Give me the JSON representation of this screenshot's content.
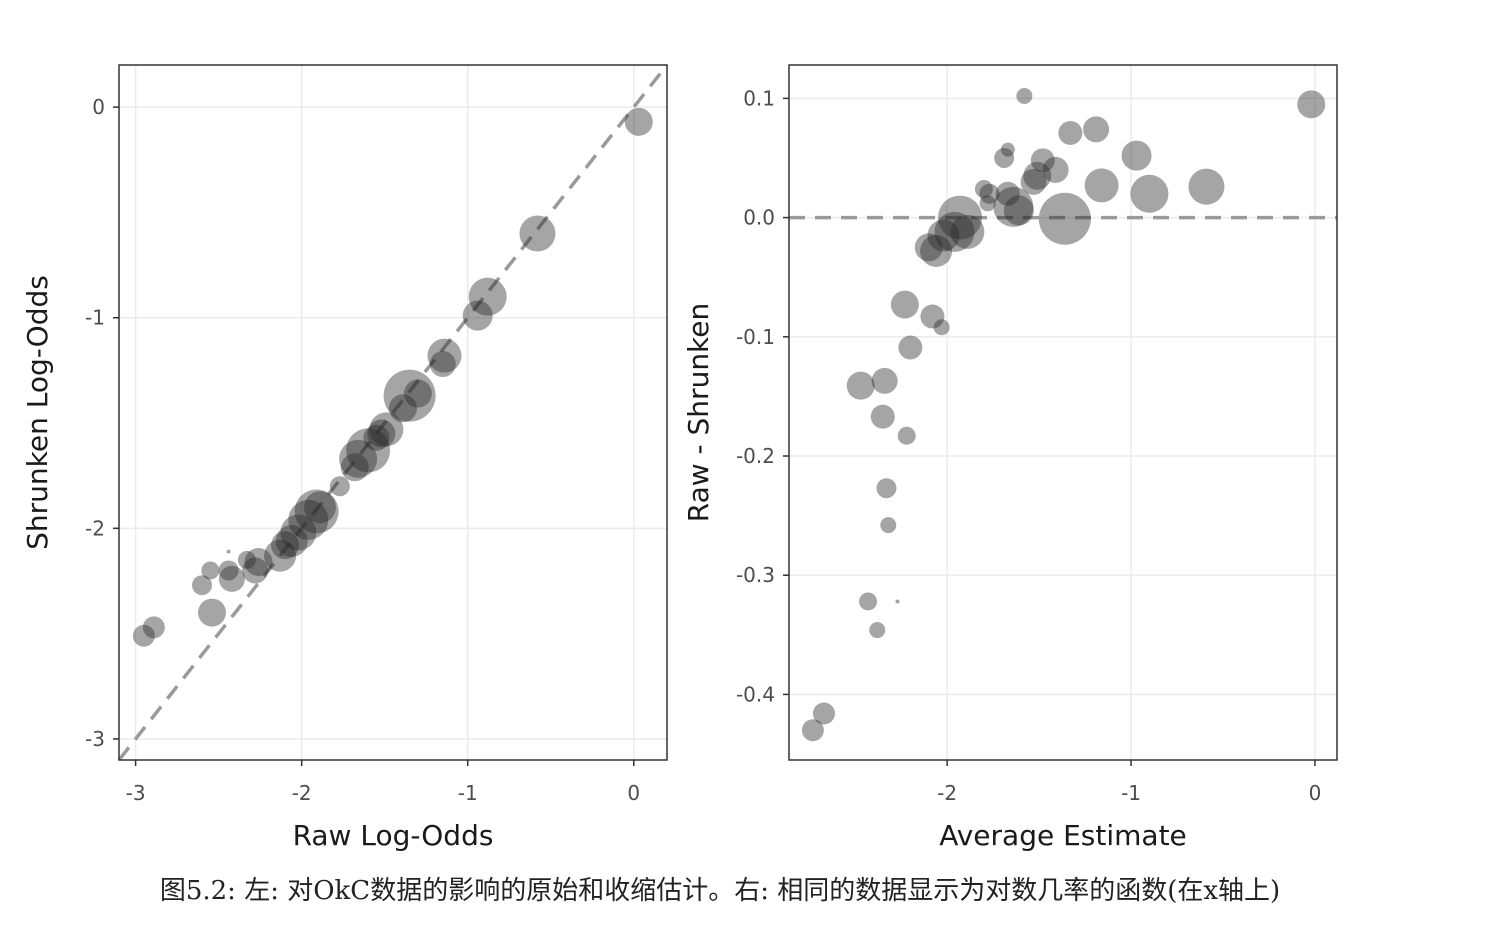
{
  "chart_data": [
    {
      "type": "scatter",
      "xlabel": "Raw Log-Odds",
      "ylabel": "Shrunken Log-Odds",
      "xlim": [
        -3.1,
        0.2
      ],
      "ylim": [
        -3.1,
        0.2
      ],
      "xticks": [
        -3,
        -2,
        -1,
        0
      ],
      "yticks": [
        0,
        -1,
        -2,
        -3
      ],
      "reference_line": "dashed y = x",
      "grid": true,
      "points": [
        {
          "x": 0.03,
          "y": -0.07,
          "s": 14
        },
        {
          "x": -0.58,
          "y": -0.6,
          "s": 18
        },
        {
          "x": -0.88,
          "y": -0.9,
          "s": 19
        },
        {
          "x": -0.94,
          "y": -0.99,
          "s": 15
        },
        {
          "x": -1.14,
          "y": -1.18,
          "s": 17
        },
        {
          "x": -1.15,
          "y": -1.22,
          "s": 13
        },
        {
          "x": -1.35,
          "y": -1.37,
          "s": 26
        },
        {
          "x": -1.3,
          "y": -1.36,
          "s": 14
        },
        {
          "x": -1.39,
          "y": -1.43,
          "s": 14
        },
        {
          "x": -1.49,
          "y": -1.53,
          "s": 17
        },
        {
          "x": -1.52,
          "y": -1.55,
          "s": 14
        },
        {
          "x": -1.55,
          "y": -1.57,
          "s": 13
        },
        {
          "x": -1.6,
          "y": -1.63,
          "s": 22
        },
        {
          "x": -1.66,
          "y": -1.67,
          "s": 19
        },
        {
          "x": -1.68,
          "y": -1.71,
          "s": 14
        },
        {
          "x": -1.77,
          "y": -1.8,
          "s": 10
        },
        {
          "x": -1.89,
          "y": -1.9,
          "s": 16
        },
        {
          "x": -1.91,
          "y": -1.92,
          "s": 22
        },
        {
          "x": -1.96,
          "y": -1.96,
          "s": 20
        },
        {
          "x": -2.02,
          "y": -2.02,
          "s": 18
        },
        {
          "x": -2.06,
          "y": -2.06,
          "s": 16
        },
        {
          "x": -2.1,
          "y": -2.08,
          "s": 14
        },
        {
          "x": -2.13,
          "y": -2.13,
          "s": 16
        },
        {
          "x": -2.26,
          "y": -2.16,
          "s": 14
        },
        {
          "x": -2.28,
          "y": -2.2,
          "s": 13
        },
        {
          "x": -2.33,
          "y": -2.15,
          "s": 9
        },
        {
          "x": -2.42,
          "y": -2.24,
          "s": 13
        },
        {
          "x": -2.44,
          "y": -2.2,
          "s": 10
        },
        {
          "x": -2.44,
          "y": -2.11,
          "s": 2
        },
        {
          "x": -2.54,
          "y": -2.4,
          "s": 14
        },
        {
          "x": -2.55,
          "y": -2.2,
          "s": 9
        },
        {
          "x": -2.6,
          "y": -2.27,
          "s": 10
        },
        {
          "x": -2.89,
          "y": -2.47,
          "s": 11
        },
        {
          "x": -2.95,
          "y": -2.51,
          "s": 11
        }
      ]
    },
    {
      "type": "scatter",
      "xlabel": "Average Estimate",
      "ylabel": "Raw - Shrunken",
      "xlim": [
        -2.86,
        0.12
      ],
      "ylim": [
        -0.455,
        0.128
      ],
      "xticks": [
        -2,
        -1,
        0
      ],
      "yticks": [
        0.1,
        0.0,
        -0.1,
        -0.2,
        -0.3,
        -0.4
      ],
      "reference_line": "dashed y = 0",
      "grid": true,
      "points": [
        {
          "x": -0.02,
          "y": 0.095,
          "s": 14
        },
        {
          "x": -0.59,
          "y": 0.026,
          "s": 18
        },
        {
          "x": -0.9,
          "y": 0.02,
          "s": 19
        },
        {
          "x": -0.97,
          "y": 0.052,
          "s": 15
        },
        {
          "x": -1.16,
          "y": 0.027,
          "s": 17
        },
        {
          "x": -1.19,
          "y": 0.074,
          "s": 13
        },
        {
          "x": -1.36,
          "y": -0.001,
          "s": 26
        },
        {
          "x": -1.33,
          "y": 0.071,
          "s": 12
        },
        {
          "x": -1.41,
          "y": 0.04,
          "s": 13
        },
        {
          "x": -1.48,
          "y": 0.048,
          "s": 12
        },
        {
          "x": -1.51,
          "y": 0.035,
          "s": 14
        },
        {
          "x": -1.53,
          "y": 0.03,
          "s": 13
        },
        {
          "x": -1.58,
          "y": 0.102,
          "s": 8
        },
        {
          "x": -1.61,
          "y": 0.006,
          "s": 15
        },
        {
          "x": -1.64,
          "y": 0.009,
          "s": 20
        },
        {
          "x": -1.67,
          "y": 0.02,
          "s": 12
        },
        {
          "x": -1.69,
          "y": 0.05,
          "s": 10
        },
        {
          "x": -1.67,
          "y": 0.057,
          "s": 7
        },
        {
          "x": -1.77,
          "y": 0.02,
          "s": 10
        },
        {
          "x": -1.8,
          "y": 0.024,
          "s": 9
        },
        {
          "x": -1.78,
          "y": 0.012,
          "s": 8
        },
        {
          "x": -1.89,
          "y": -0.012,
          "s": 17
        },
        {
          "x": -1.93,
          "y": 0.0,
          "s": 22
        },
        {
          "x": -1.96,
          "y": -0.012,
          "s": 20
        },
        {
          "x": -2.02,
          "y": -0.015,
          "s": 16
        },
        {
          "x": -2.06,
          "y": -0.028,
          "s": 16
        },
        {
          "x": -2.1,
          "y": -0.025,
          "s": 14
        },
        {
          "x": -2.03,
          "y": -0.092,
          "s": 8
        },
        {
          "x": -2.08,
          "y": -0.083,
          "s": 12
        },
        {
          "x": -2.23,
          "y": -0.073,
          "s": 14
        },
        {
          "x": -2.2,
          "y": -0.109,
          "s": 12
        },
        {
          "x": -2.47,
          "y": -0.141,
          "s": 14
        },
        {
          "x": -2.34,
          "y": -0.137,
          "s": 13
        },
        {
          "x": -2.35,
          "y": -0.167,
          "s": 12
        },
        {
          "x": -2.22,
          "y": -0.183,
          "s": 9
        },
        {
          "x": -2.33,
          "y": -0.227,
          "s": 10
        },
        {
          "x": -2.32,
          "y": -0.258,
          "s": 8
        },
        {
          "x": -2.27,
          "y": -0.322,
          "s": 2
        },
        {
          "x": -2.43,
          "y": -0.322,
          "s": 9
        },
        {
          "x": -2.38,
          "y": -0.346,
          "s": 8
        },
        {
          "x": -2.67,
          "y": -0.416,
          "s": 11
        },
        {
          "x": -2.73,
          "y": -0.43,
          "s": 11
        }
      ]
    }
  ],
  "caption": "图5.2: 左: 对OkC数据的影响的原始和收缩估计。右: 相同的数据显示为对数几率的函数(在x轴上)"
}
